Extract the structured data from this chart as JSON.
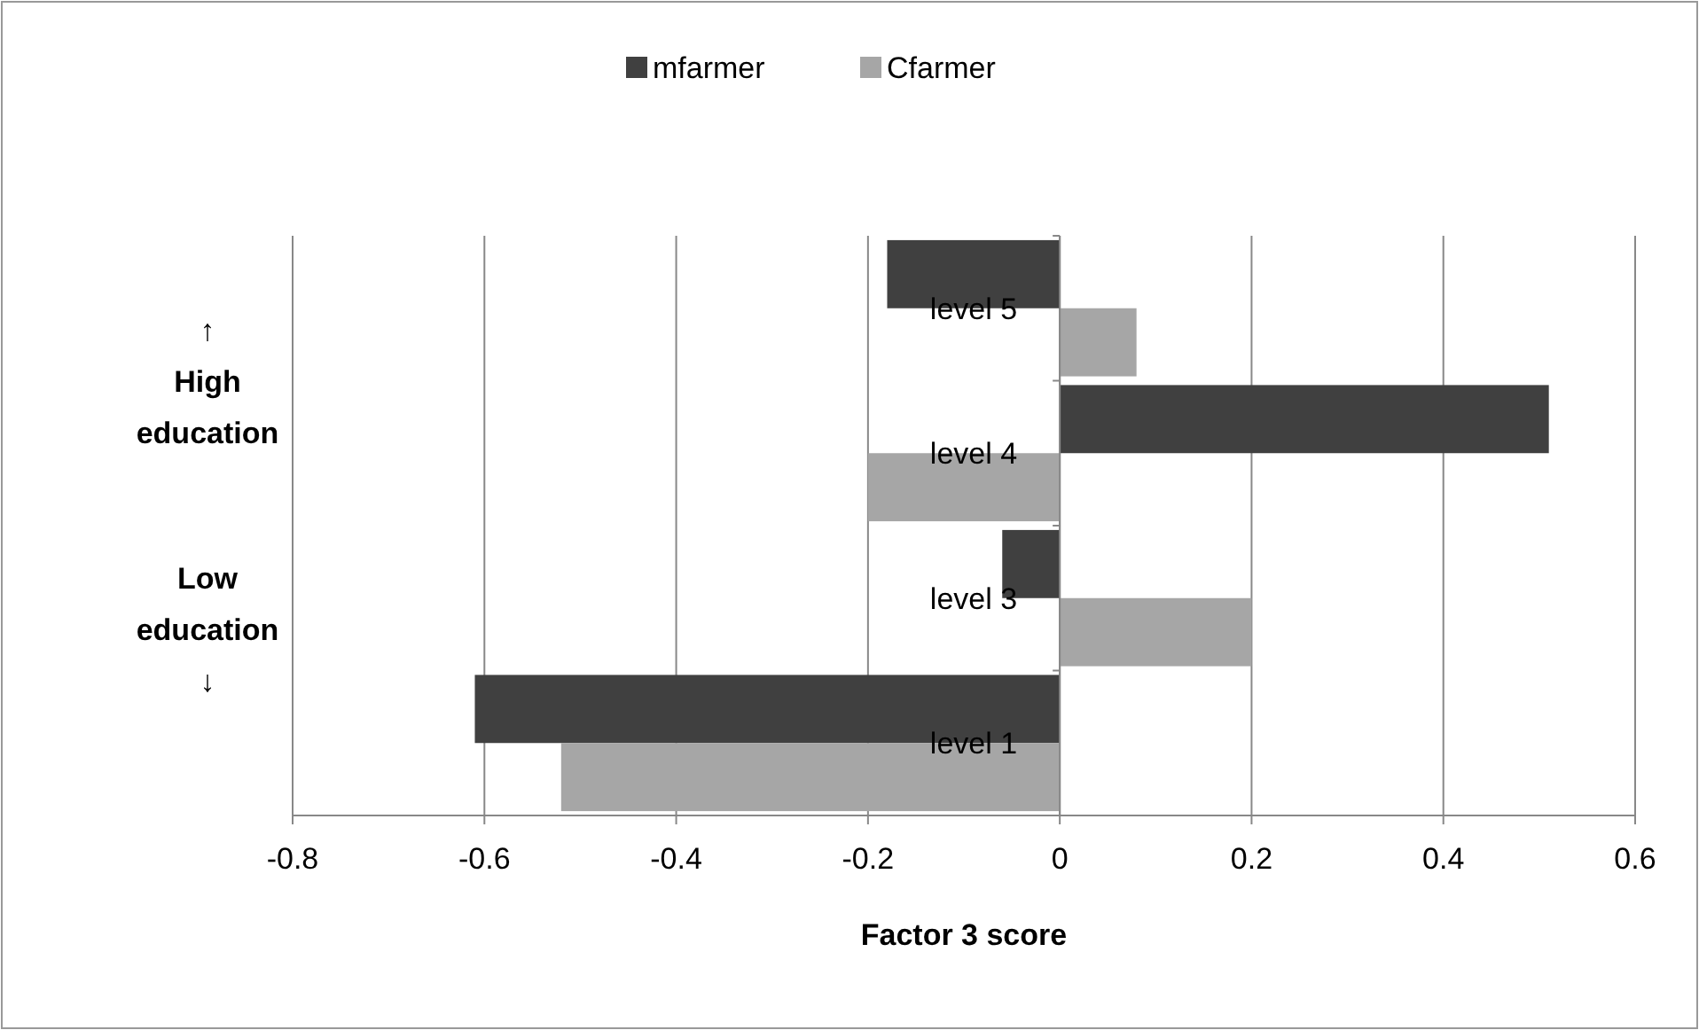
{
  "chart_data": {
    "type": "bar",
    "orientation": "horizontal",
    "categories": [
      "level 5",
      "level 4",
      "level 3",
      "level 1"
    ],
    "series": [
      {
        "name": "mfarmer",
        "color": "#404040",
        "values": [
          -0.18,
          0.51,
          -0.06,
          -0.61
        ]
      },
      {
        "name": "Cfarmer",
        "color": "#a6a6a6",
        "values": [
          0.08,
          -0.2,
          0.2,
          -0.52
        ]
      }
    ],
    "xlim": [
      -0.8,
      0.6
    ],
    "xticks": [
      -0.8,
      -0.6,
      -0.4,
      -0.2,
      0,
      0.2,
      0.4,
      0.6
    ],
    "xlabel": "Factor 3 score",
    "grid": "x",
    "legend": "top",
    "annotations": [
      "↑ High education",
      "Low education ↓"
    ]
  }
}
